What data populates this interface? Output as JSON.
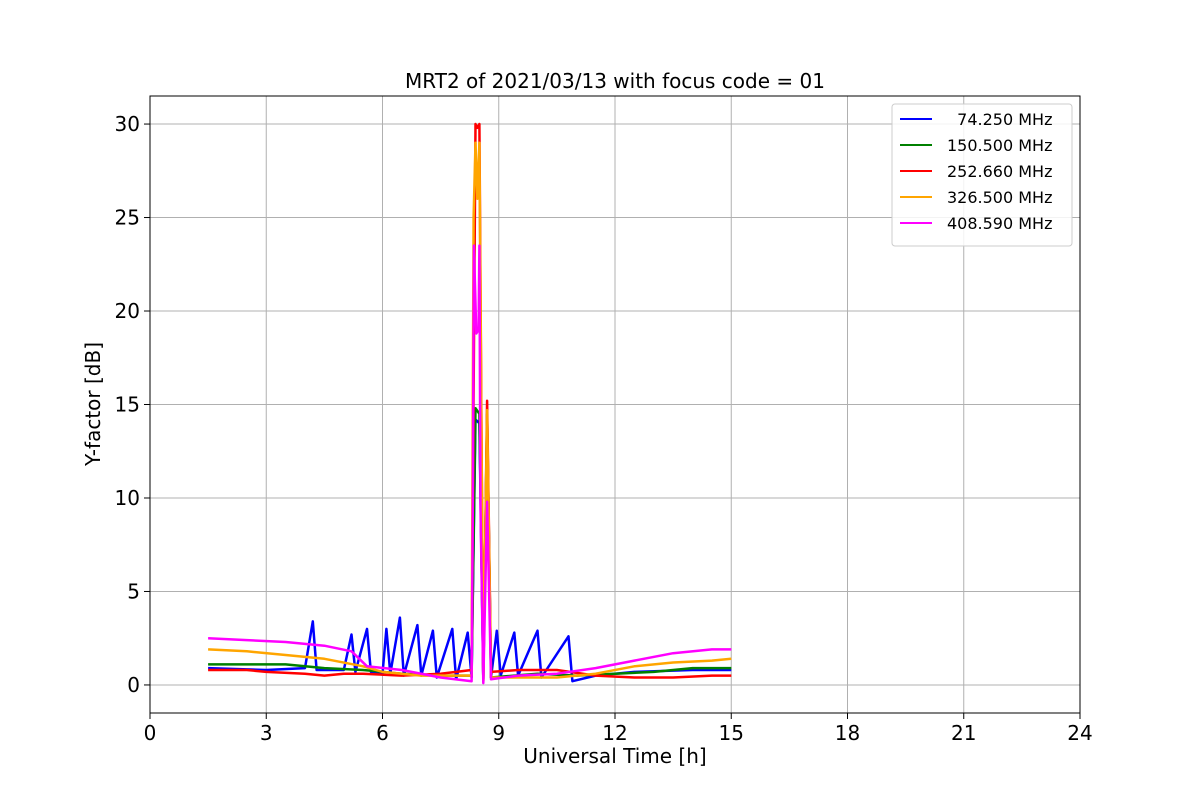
{
  "chart_data": {
    "type": "line",
    "title": "MRT2 of 2021/03/13 with focus code = 01",
    "xlabel": "Universal Time [h]",
    "ylabel": "Y-factor [dB]",
    "xlim": [
      0,
      24
    ],
    "ylim": [
      -1.5,
      31.5
    ],
    "xticks": [
      0,
      3,
      6,
      9,
      12,
      15,
      18,
      21,
      24
    ],
    "yticks": [
      0,
      5,
      10,
      15,
      20,
      25,
      30
    ],
    "grid": true,
    "legend_position": "top-right",
    "series": [
      {
        "name": "  74.250 MHz",
        "color": "#0000ff",
        "points": [
          [
            1.5,
            0.9
          ],
          [
            3.0,
            0.8
          ],
          [
            4.0,
            0.9
          ],
          [
            4.2,
            3.4
          ],
          [
            4.3,
            0.8
          ],
          [
            5.0,
            0.8
          ],
          [
            5.2,
            2.7
          ],
          [
            5.3,
            0.7
          ],
          [
            5.6,
            3.0
          ],
          [
            5.7,
            0.7
          ],
          [
            6.0,
            0.6
          ],
          [
            6.1,
            3.0
          ],
          [
            6.2,
            0.6
          ],
          [
            6.45,
            3.6
          ],
          [
            6.55,
            0.5
          ],
          [
            6.9,
            3.2
          ],
          [
            7.0,
            0.5
          ],
          [
            7.3,
            2.9
          ],
          [
            7.4,
            0.4
          ],
          [
            7.8,
            3.0
          ],
          [
            7.9,
            0.3
          ],
          [
            8.2,
            2.8
          ],
          [
            8.3,
            0.4
          ],
          [
            8.4,
            14.2
          ],
          [
            8.5,
            14.0
          ],
          [
            8.6,
            0.3
          ],
          [
            8.7,
            14.0
          ],
          [
            8.8,
            0.4
          ],
          [
            8.95,
            2.9
          ],
          [
            9.05,
            0.5
          ],
          [
            9.4,
            2.8
          ],
          [
            9.5,
            0.5
          ],
          [
            10.0,
            2.9
          ],
          [
            10.1,
            0.4
          ],
          [
            10.8,
            2.6
          ],
          [
            10.9,
            0.2
          ],
          [
            11.5,
            0.5
          ],
          [
            12.5,
            0.7
          ],
          [
            14.0,
            0.8
          ],
          [
            15.0,
            0.8
          ]
        ]
      },
      {
        "name": "150.500 MHz",
        "color": "#008000",
        "points": [
          [
            1.5,
            1.1
          ],
          [
            2.5,
            1.1
          ],
          [
            3.5,
            1.1
          ],
          [
            4.5,
            0.9
          ],
          [
            5.5,
            0.8
          ],
          [
            6.5,
            0.6
          ],
          [
            7.5,
            0.5
          ],
          [
            8.3,
            0.5
          ],
          [
            8.4,
            14.8
          ],
          [
            8.5,
            14.5
          ],
          [
            8.6,
            0.3
          ],
          [
            8.7,
            14.5
          ],
          [
            8.8,
            0.4
          ],
          [
            10.0,
            0.6
          ],
          [
            11.0,
            0.5
          ],
          [
            12.0,
            0.6
          ],
          [
            13.0,
            0.7
          ],
          [
            14.0,
            0.9
          ],
          [
            15.0,
            0.9
          ]
        ]
      },
      {
        "name": "252.660 MHz",
        "color": "#ff0000",
        "points": [
          [
            1.5,
            0.8
          ],
          [
            2.5,
            0.8
          ],
          [
            3.0,
            0.7
          ],
          [
            4.0,
            0.6
          ],
          [
            4.5,
            0.5
          ],
          [
            5.0,
            0.6
          ],
          [
            5.5,
            0.6
          ],
          [
            6.5,
            0.5
          ],
          [
            7.5,
            0.6
          ],
          [
            8.3,
            0.8
          ],
          [
            8.35,
            15.5
          ],
          [
            8.4,
            30.0
          ],
          [
            8.45,
            29.8
          ],
          [
            8.5,
            30.0
          ],
          [
            8.55,
            15.0
          ],
          [
            8.6,
            0.2
          ],
          [
            8.7,
            15.2
          ],
          [
            8.8,
            0.7
          ],
          [
            9.5,
            0.8
          ],
          [
            10.5,
            0.8
          ],
          [
            11.5,
            0.5
          ],
          [
            12.5,
            0.4
          ],
          [
            13.5,
            0.4
          ],
          [
            14.5,
            0.5
          ],
          [
            15.0,
            0.5
          ]
        ]
      },
      {
        "name": "326.500 MHz",
        "color": "#ffa500",
        "points": [
          [
            1.5,
            1.9
          ],
          [
            2.5,
            1.8
          ],
          [
            3.5,
            1.6
          ],
          [
            4.5,
            1.4
          ],
          [
            5.5,
            1.0
          ],
          [
            6.0,
            0.7
          ],
          [
            7.0,
            0.5
          ],
          [
            8.3,
            0.5
          ],
          [
            8.35,
            25.0
          ],
          [
            8.4,
            29.0
          ],
          [
            8.45,
            26.0
          ],
          [
            8.5,
            29.0
          ],
          [
            8.55,
            14.5
          ],
          [
            8.6,
            0.2
          ],
          [
            8.7,
            14.7
          ],
          [
            8.8,
            0.4
          ],
          [
            9.5,
            0.4
          ],
          [
            10.5,
            0.4
          ],
          [
            11.5,
            0.6
          ],
          [
            12.5,
            1.0
          ],
          [
            13.5,
            1.2
          ],
          [
            14.5,
            1.3
          ],
          [
            15.0,
            1.4
          ]
        ]
      },
      {
        "name": "408.590 MHz",
        "color": "#ff00ff",
        "points": [
          [
            1.5,
            2.5
          ],
          [
            2.5,
            2.4
          ],
          [
            3.5,
            2.3
          ],
          [
            4.5,
            2.1
          ],
          [
            5.2,
            1.8
          ],
          [
            5.6,
            1.0
          ],
          [
            6.5,
            0.8
          ],
          [
            7.5,
            0.4
          ],
          [
            8.3,
            0.2
          ],
          [
            8.33,
            9.6
          ],
          [
            8.36,
            23.5
          ],
          [
            8.42,
            18.8
          ],
          [
            8.48,
            19.0
          ],
          [
            8.5,
            23.5
          ],
          [
            8.53,
            9.5
          ],
          [
            8.6,
            0.1
          ],
          [
            8.7,
            9.8
          ],
          [
            8.8,
            0.3
          ],
          [
            9.5,
            0.5
          ],
          [
            10.5,
            0.6
          ],
          [
            11.5,
            0.9
          ],
          [
            12.5,
            1.3
          ],
          [
            13.5,
            1.7
          ],
          [
            14.5,
            1.9
          ],
          [
            15.0,
            1.9
          ]
        ]
      }
    ]
  }
}
